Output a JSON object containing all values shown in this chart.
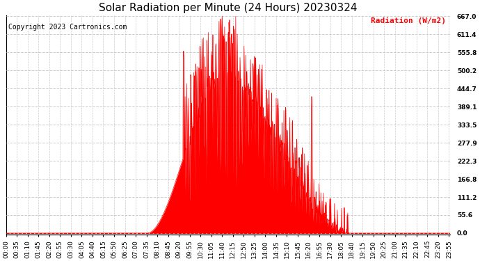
{
  "title": "Solar Radiation per Minute (24 Hours) 20230324",
  "copyright_text": "Copyright 2023 Cartronics.com",
  "ylabel": "Radiation (W/m2)",
  "ylabel_color": "#ff0000",
  "background_color": "#ffffff",
  "plot_bg_color": "#ffffff",
  "fill_color": "#ff0000",
  "line_color": "#ff0000",
  "hline_color": "#cccccc",
  "hline_style": "--",
  "vline_color": "#cccccc",
  "vline_style": "--",
  "zero_line_color": "#ff0000",
  "zero_line_style": "--",
  "ymin": 0.0,
  "ymax": 667.0,
  "yticks": [
    0.0,
    55.6,
    111.2,
    166.8,
    222.3,
    277.9,
    333.5,
    389.1,
    444.7,
    500.2,
    555.8,
    611.4,
    667.0
  ],
  "title_fontsize": 11,
  "tick_fontsize": 6.5,
  "label_fontsize": 8,
  "copyright_fontsize": 7,
  "num_minutes": 1440,
  "x_tick_interval": 35,
  "figsize": [
    6.9,
    3.75
  ],
  "dpi": 100
}
